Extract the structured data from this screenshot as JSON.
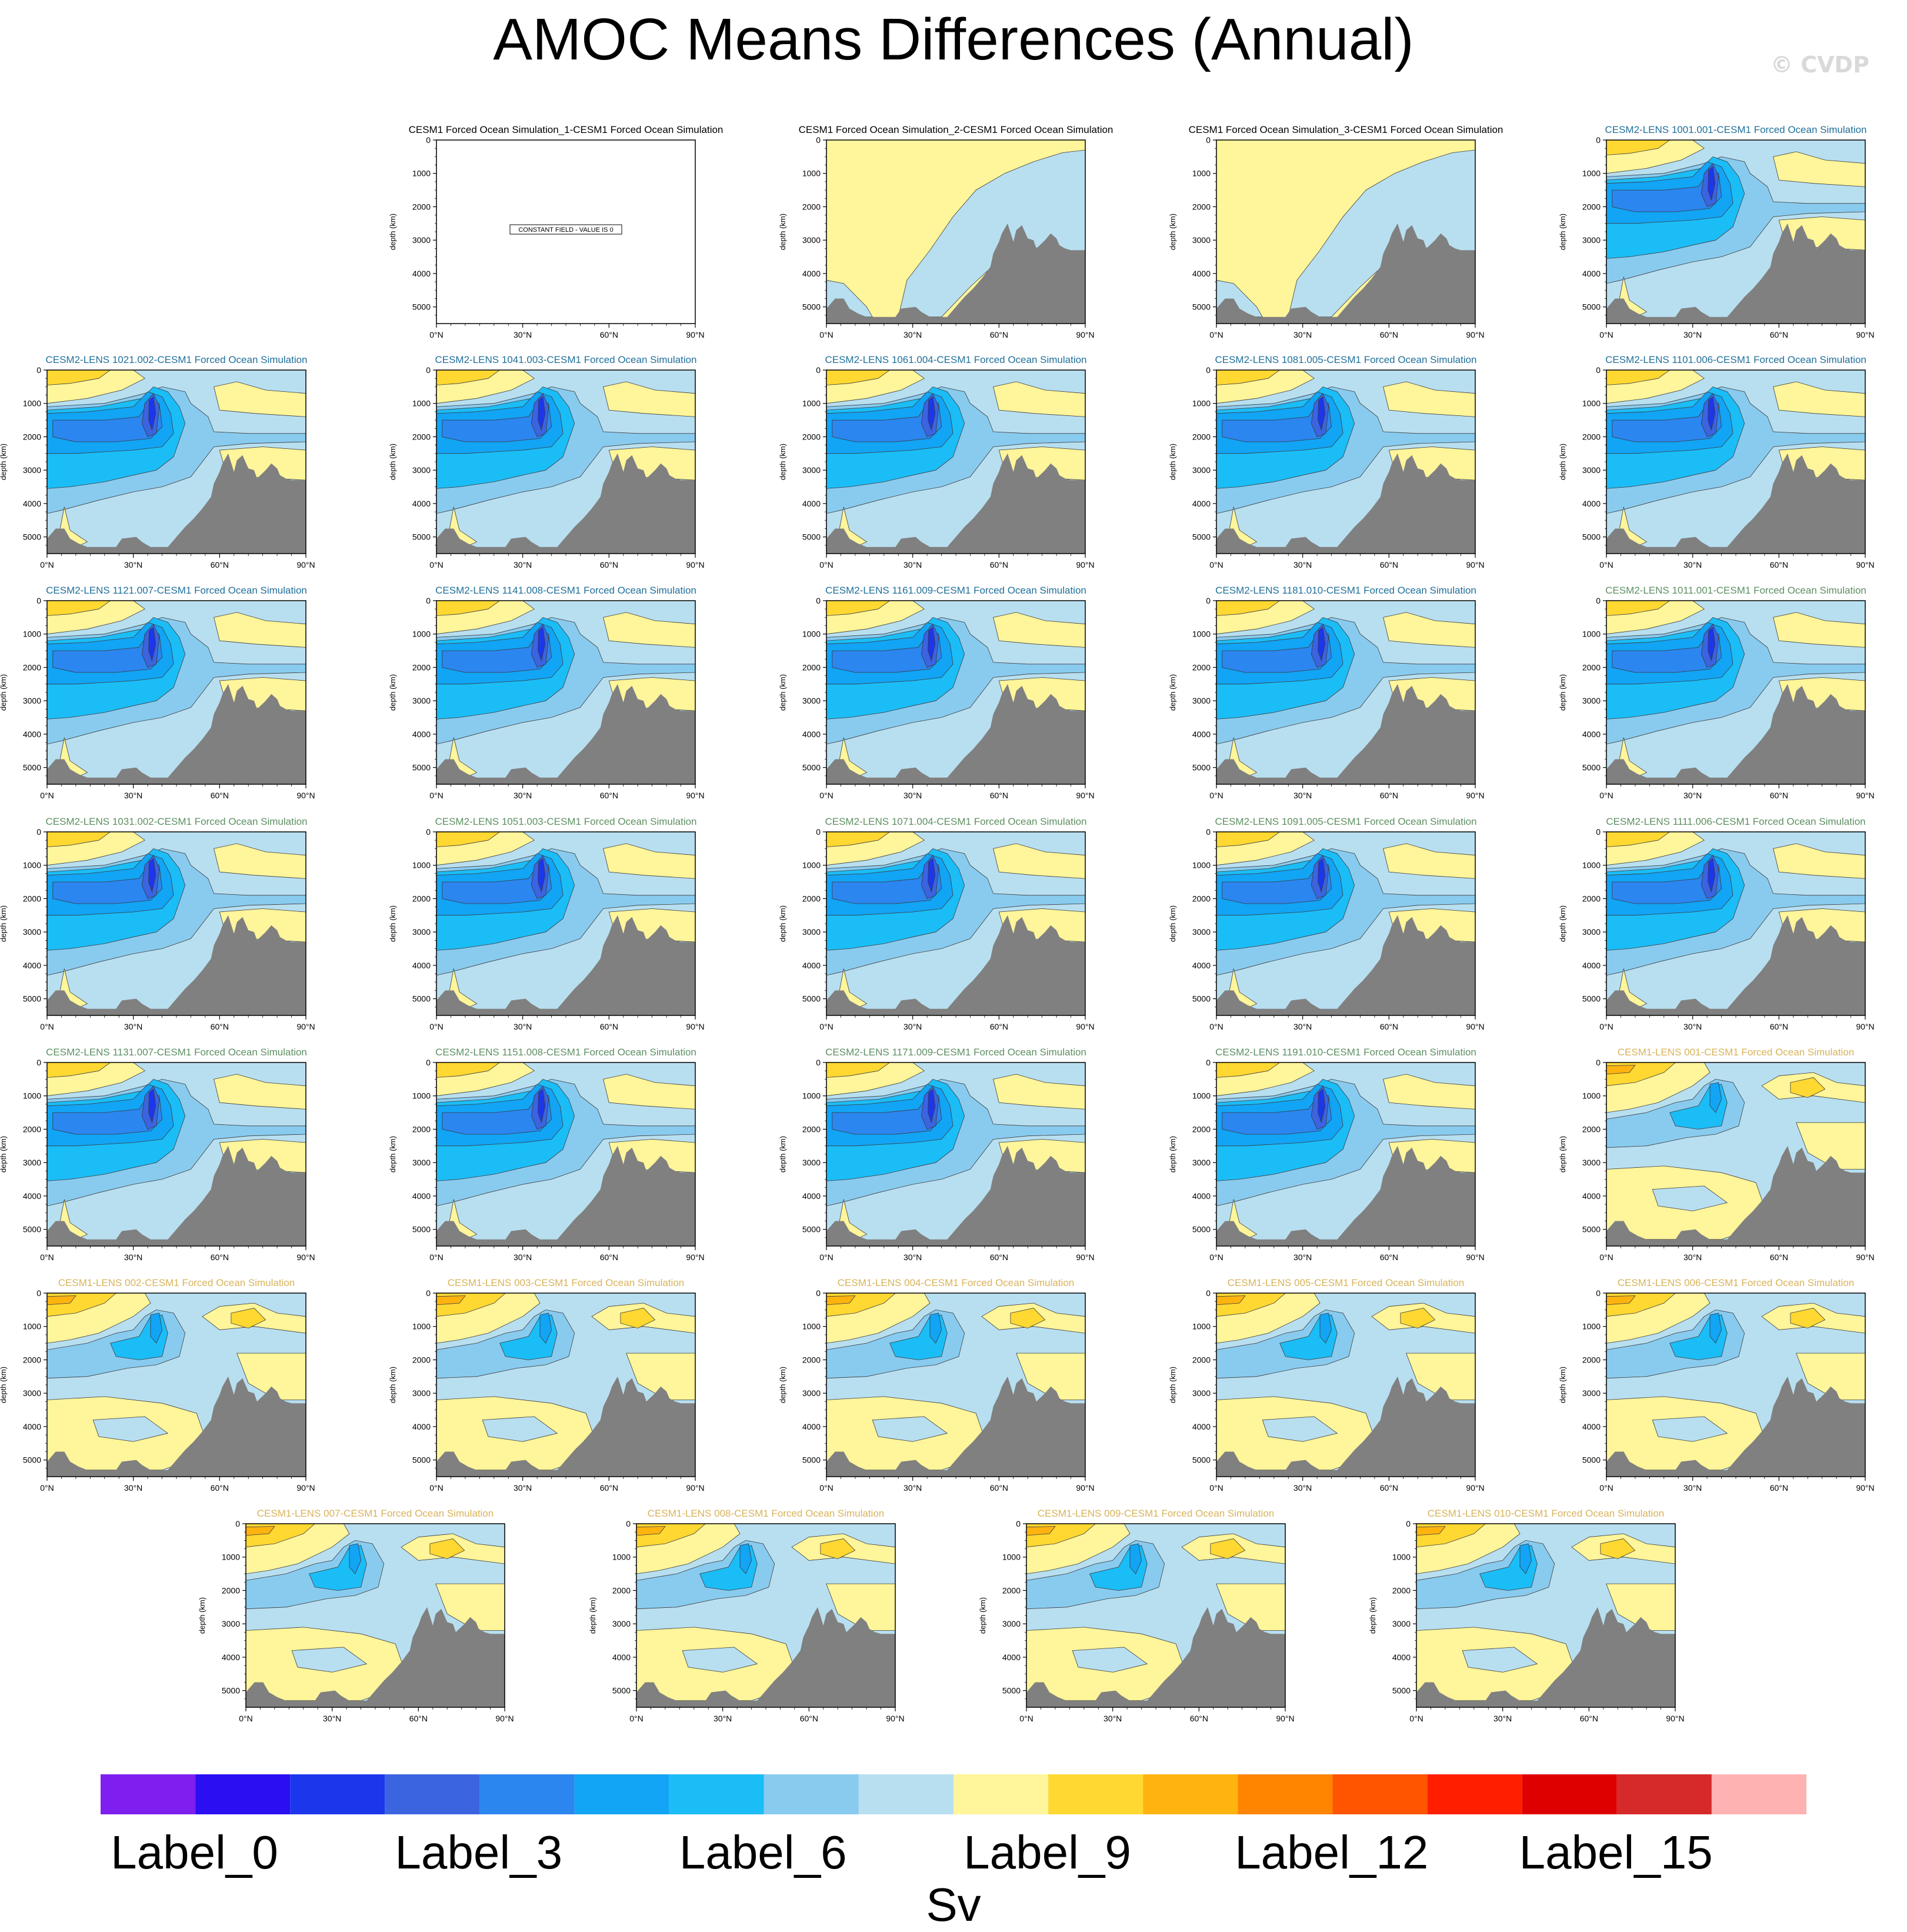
{
  "title": "AMOC Means Differences (Annual)",
  "copyright": "© CVDP",
  "colors": {
    "title_black": "#000000",
    "title_cesm2_first": "#1f6f9a",
    "title_cesm2_second": "#5d8f62",
    "title_cesm1": "#d8b35a",
    "topography": "#808080"
  },
  "chart_data": {
    "type": "contour-panels",
    "x_ticks": [
      "0°N",
      "30°N",
      "60°N",
      "90°N"
    ],
    "y_ticks": [
      "0",
      "1000",
      "2000",
      "3000",
      "4000",
      "5000"
    ],
    "ylabel": "depth (km)",
    "xlim": [
      0,
      90
    ],
    "ylim": [
      5500,
      0
    ],
    "constant_field_label": "CONSTANT FIELD - VALUE IS 0",
    "panels": [
      {
        "title": "CESM1 Forced Ocean Simulation_1-CESM1 Forced Ocean Simulation",
        "group": "black",
        "pattern": "constant"
      },
      {
        "title": "CESM1 Forced Ocean Simulation_2-CESM1 Forced Ocean Simulation",
        "group": "black",
        "pattern": "forced"
      },
      {
        "title": "CESM1 Forced Ocean Simulation_3-CESM1 Forced Ocean Simulation",
        "group": "black",
        "pattern": "forced"
      },
      {
        "title": "CESM2-LENS 1001.001-CESM1 Forced Ocean Simulation",
        "group": "cesm2a",
        "pattern": "cesm2"
      },
      {
        "title": "CESM2-LENS 1021.002-CESM1 Forced Ocean Simulation",
        "group": "cesm2a",
        "pattern": "cesm2"
      },
      {
        "title": "CESM2-LENS 1041.003-CESM1 Forced Ocean Simulation",
        "group": "cesm2a",
        "pattern": "cesm2"
      },
      {
        "title": "CESM2-LENS 1061.004-CESM1 Forced Ocean Simulation",
        "group": "cesm2a",
        "pattern": "cesm2"
      },
      {
        "title": "CESM2-LENS 1081.005-CESM1 Forced Ocean Simulation",
        "group": "cesm2a",
        "pattern": "cesm2"
      },
      {
        "title": "CESM2-LENS 1101.006-CESM1 Forced Ocean Simulation",
        "group": "cesm2a",
        "pattern": "cesm2"
      },
      {
        "title": "CESM2-LENS 1121.007-CESM1 Forced Ocean Simulation",
        "group": "cesm2a",
        "pattern": "cesm2"
      },
      {
        "title": "CESM2-LENS 1141.008-CESM1 Forced Ocean Simulation",
        "group": "cesm2a",
        "pattern": "cesm2"
      },
      {
        "title": "CESM2-LENS 1161.009-CESM1 Forced Ocean Simulation",
        "group": "cesm2a",
        "pattern": "cesm2"
      },
      {
        "title": "CESM2-LENS 1181.010-CESM1 Forced Ocean Simulation",
        "group": "cesm2a",
        "pattern": "cesm2"
      },
      {
        "title": "CESM2-LENS 1011.001-CESM1 Forced Ocean Simulation",
        "group": "cesm2b",
        "pattern": "cesm2"
      },
      {
        "title": "CESM2-LENS 1031.002-CESM1 Forced Ocean Simulation",
        "group": "cesm2b",
        "pattern": "cesm2"
      },
      {
        "title": "CESM2-LENS 1051.003-CESM1 Forced Ocean Simulation",
        "group": "cesm2b",
        "pattern": "cesm2"
      },
      {
        "title": "CESM2-LENS 1071.004-CESM1 Forced Ocean Simulation",
        "group": "cesm2b",
        "pattern": "cesm2"
      },
      {
        "title": "CESM2-LENS 1091.005-CESM1 Forced Ocean Simulation",
        "group": "cesm2b",
        "pattern": "cesm2"
      },
      {
        "title": "CESM2-LENS 1111.006-CESM1 Forced Ocean Simulation",
        "group": "cesm2b",
        "pattern": "cesm2"
      },
      {
        "title": "CESM2-LENS 1131.007-CESM1 Forced Ocean Simulation",
        "group": "cesm2b",
        "pattern": "cesm2"
      },
      {
        "title": "CESM2-LENS 1151.008-CESM1 Forced Ocean Simulation",
        "group": "cesm2b",
        "pattern": "cesm2"
      },
      {
        "title": "CESM2-LENS 1171.009-CESM1 Forced Ocean Simulation",
        "group": "cesm2b",
        "pattern": "cesm2"
      },
      {
        "title": "CESM2-LENS 1191.010-CESM1 Forced Ocean Simulation",
        "group": "cesm2b",
        "pattern": "cesm2"
      },
      {
        "title": "CESM1-LENS 001-CESM1 Forced Ocean Simulation",
        "group": "cesm1",
        "pattern": "cesm1"
      },
      {
        "title": "CESM1-LENS 002-CESM1 Forced Ocean Simulation",
        "group": "cesm1",
        "pattern": "cesm1"
      },
      {
        "title": "CESM1-LENS 003-CESM1 Forced Ocean Simulation",
        "group": "cesm1",
        "pattern": "cesm1"
      },
      {
        "title": "CESM1-LENS 004-CESM1 Forced Ocean Simulation",
        "group": "cesm1",
        "pattern": "cesm1"
      },
      {
        "title": "CESM1-LENS 005-CESM1 Forced Ocean Simulation",
        "group": "cesm1",
        "pattern": "cesm1"
      },
      {
        "title": "CESM1-LENS 006-CESM1 Forced Ocean Simulation",
        "group": "cesm1",
        "pattern": "cesm1"
      },
      {
        "title": "CESM1-LENS 007-CESM1 Forced Ocean Simulation",
        "group": "cesm1",
        "pattern": "cesm1"
      },
      {
        "title": "CESM1-LENS 008-CESM1 Forced Ocean Simulation",
        "group": "cesm1",
        "pattern": "cesm1"
      },
      {
        "title": "CESM1-LENS 009-CESM1 Forced Ocean Simulation",
        "group": "cesm1",
        "pattern": "cesm1"
      },
      {
        "title": "CESM1-LENS 010-CESM1 Forced Ocean Simulation",
        "group": "cesm1",
        "pattern": "cesm1"
      }
    ],
    "colorbar": {
      "colors": [
        "#7f1fef",
        "#2b0ef2",
        "#1c36ec",
        "#3b64e0",
        "#2b86f0",
        "#12a4f5",
        "#1bbdf7",
        "#89cbef",
        "#b8dff0",
        "#fff59a",
        "#ffd832",
        "#ffb30f",
        "#ff8400",
        "#ff5400",
        "#ff1e00",
        "#de0000",
        "#d62a2a",
        "#ffb2b2"
      ],
      "labels": [
        "Label_0",
        "Label_3",
        "Label_6",
        "Label_9",
        "Label_12",
        "Label_15"
      ],
      "label_color_index": [
        0,
        3,
        6,
        9,
        12,
        15
      ],
      "units": "Sv"
    }
  }
}
